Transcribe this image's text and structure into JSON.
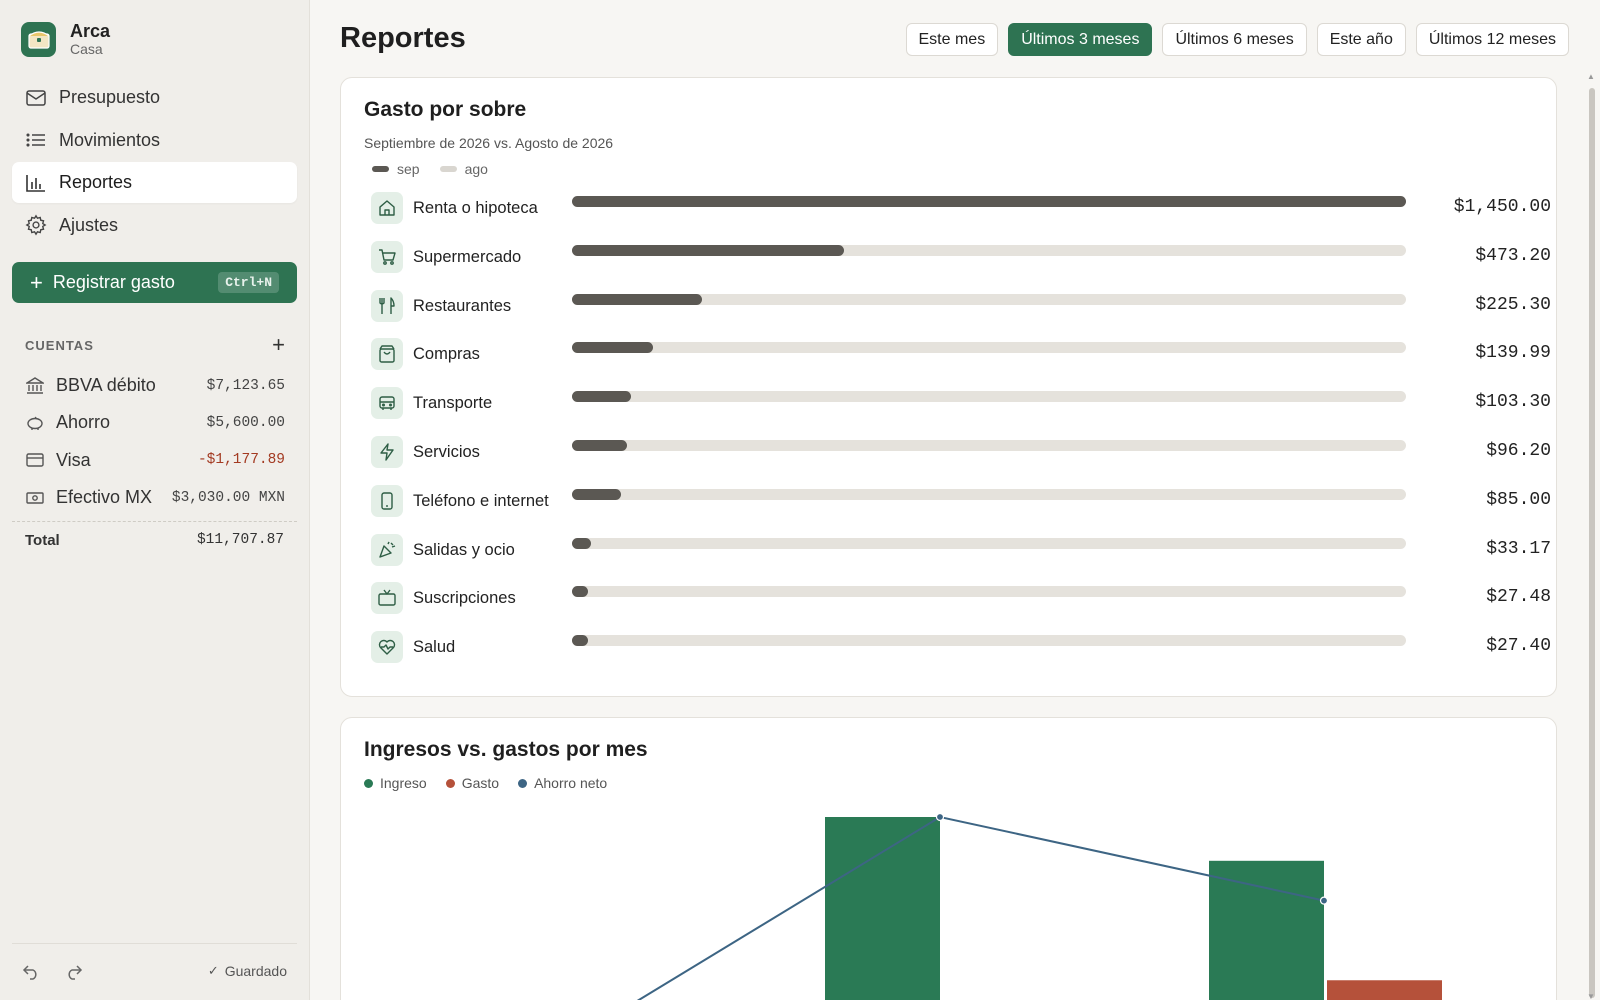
{
  "brand": {
    "name": "Arca",
    "subtitle": "Casa"
  },
  "nav": [
    {
      "label": "Presupuesto",
      "icon": "mail-icon",
      "active": false
    },
    {
      "label": "Movimientos",
      "icon": "list-icon",
      "active": false
    },
    {
      "label": "Reportes",
      "icon": "bar-chart-icon",
      "active": true
    },
    {
      "label": "Ajustes",
      "icon": "gear-icon",
      "active": false
    }
  ],
  "cta": {
    "label": "Registrar gasto",
    "shortcut": "Ctrl+N"
  },
  "accounts": {
    "title": "CUENTAS",
    "items": [
      {
        "name": "BBVA débito",
        "balance": "$7,123.65",
        "icon": "bank-icon",
        "negative": false
      },
      {
        "name": "Ahorro",
        "balance": "$5,600.00",
        "icon": "piggy-bank-icon",
        "negative": false
      },
      {
        "name": "Visa",
        "balance": "-$1,177.89",
        "icon": "credit-card-icon",
        "negative": true
      },
      {
        "name": "Efectivo MX",
        "balance": "$3,030.00 MXN",
        "icon": "cash-icon",
        "negative": false
      }
    ],
    "total_label": "Total",
    "total_value": "$11,707.87"
  },
  "footer": {
    "saved_label": "Guardado"
  },
  "page": {
    "title": "Reportes"
  },
  "range_tabs": [
    {
      "label": "Este mes",
      "active": false
    },
    {
      "label": "Últimos 3 meses",
      "active": true
    },
    {
      "label": "Últimos 6 meses",
      "active": false
    },
    {
      "label": "Este año",
      "active": false
    },
    {
      "label": "Últimos 12 meses",
      "active": false
    }
  ],
  "colors": {
    "accent": "#2e7352",
    "bar_current": "#5b5853",
    "bar_track": "#e5e2dc",
    "income": "#2a7a55",
    "expense": "#b5513a",
    "net": "#3d6584"
  },
  "spending": {
    "title": "Gasto por sobre",
    "subtitle": "Septiembre de 2026 vs. Agosto de 2026",
    "legend": [
      {
        "label": "sep",
        "color": "#5b5853"
      },
      {
        "label": "ago",
        "color": "#d9d6d0"
      }
    ],
    "categories": [
      {
        "name": "Renta o hipoteca",
        "amount": "$1,450.00",
        "value": 1450.0,
        "icon": "home-icon"
      },
      {
        "name": "Supermercado",
        "amount": "$473.20",
        "value": 473.2,
        "icon": "cart-icon"
      },
      {
        "name": "Restaurantes",
        "amount": "$225.30",
        "value": 225.3,
        "icon": "utensils-icon"
      },
      {
        "name": "Compras",
        "amount": "$139.99",
        "value": 139.99,
        "icon": "shopping-bag-icon"
      },
      {
        "name": "Transporte",
        "amount": "$103.30",
        "value": 103.3,
        "icon": "bus-icon"
      },
      {
        "name": "Servicios",
        "amount": "$96.20",
        "value": 96.2,
        "icon": "bolt-icon"
      },
      {
        "name": "Teléfono e internet",
        "amount": "$85.00",
        "value": 85.0,
        "icon": "phone-icon"
      },
      {
        "name": "Salidas y ocio",
        "amount": "$33.17",
        "value": 33.17,
        "icon": "party-icon"
      },
      {
        "name": "Suscripciones",
        "amount": "$27.48",
        "value": 27.48,
        "icon": "tv-icon"
      },
      {
        "name": "Salud",
        "amount": "$27.40",
        "value": 27.4,
        "icon": "heart-pulse-icon"
      }
    ]
  },
  "chart_data": {
    "type": "bar",
    "title": "Ingresos vs. gastos por mes",
    "legend_position": "top-left",
    "grid": false,
    "categories": [
      "",
      "",
      ""
    ],
    "series": [
      {
        "name": "Ingreso",
        "type": "bar",
        "color": "#2a7a55",
        "values": [
          null,
          100,
          78
        ]
      },
      {
        "name": "Gasto",
        "type": "bar",
        "color": "#b5513a",
        "values": [
          null,
          null,
          18
        ]
      },
      {
        "name": "Ahorro neto",
        "type": "line",
        "color": "#3d6584",
        "values": [
          -5,
          100,
          58
        ]
      }
    ],
    "ylim": [
      -10,
      100
    ]
  }
}
